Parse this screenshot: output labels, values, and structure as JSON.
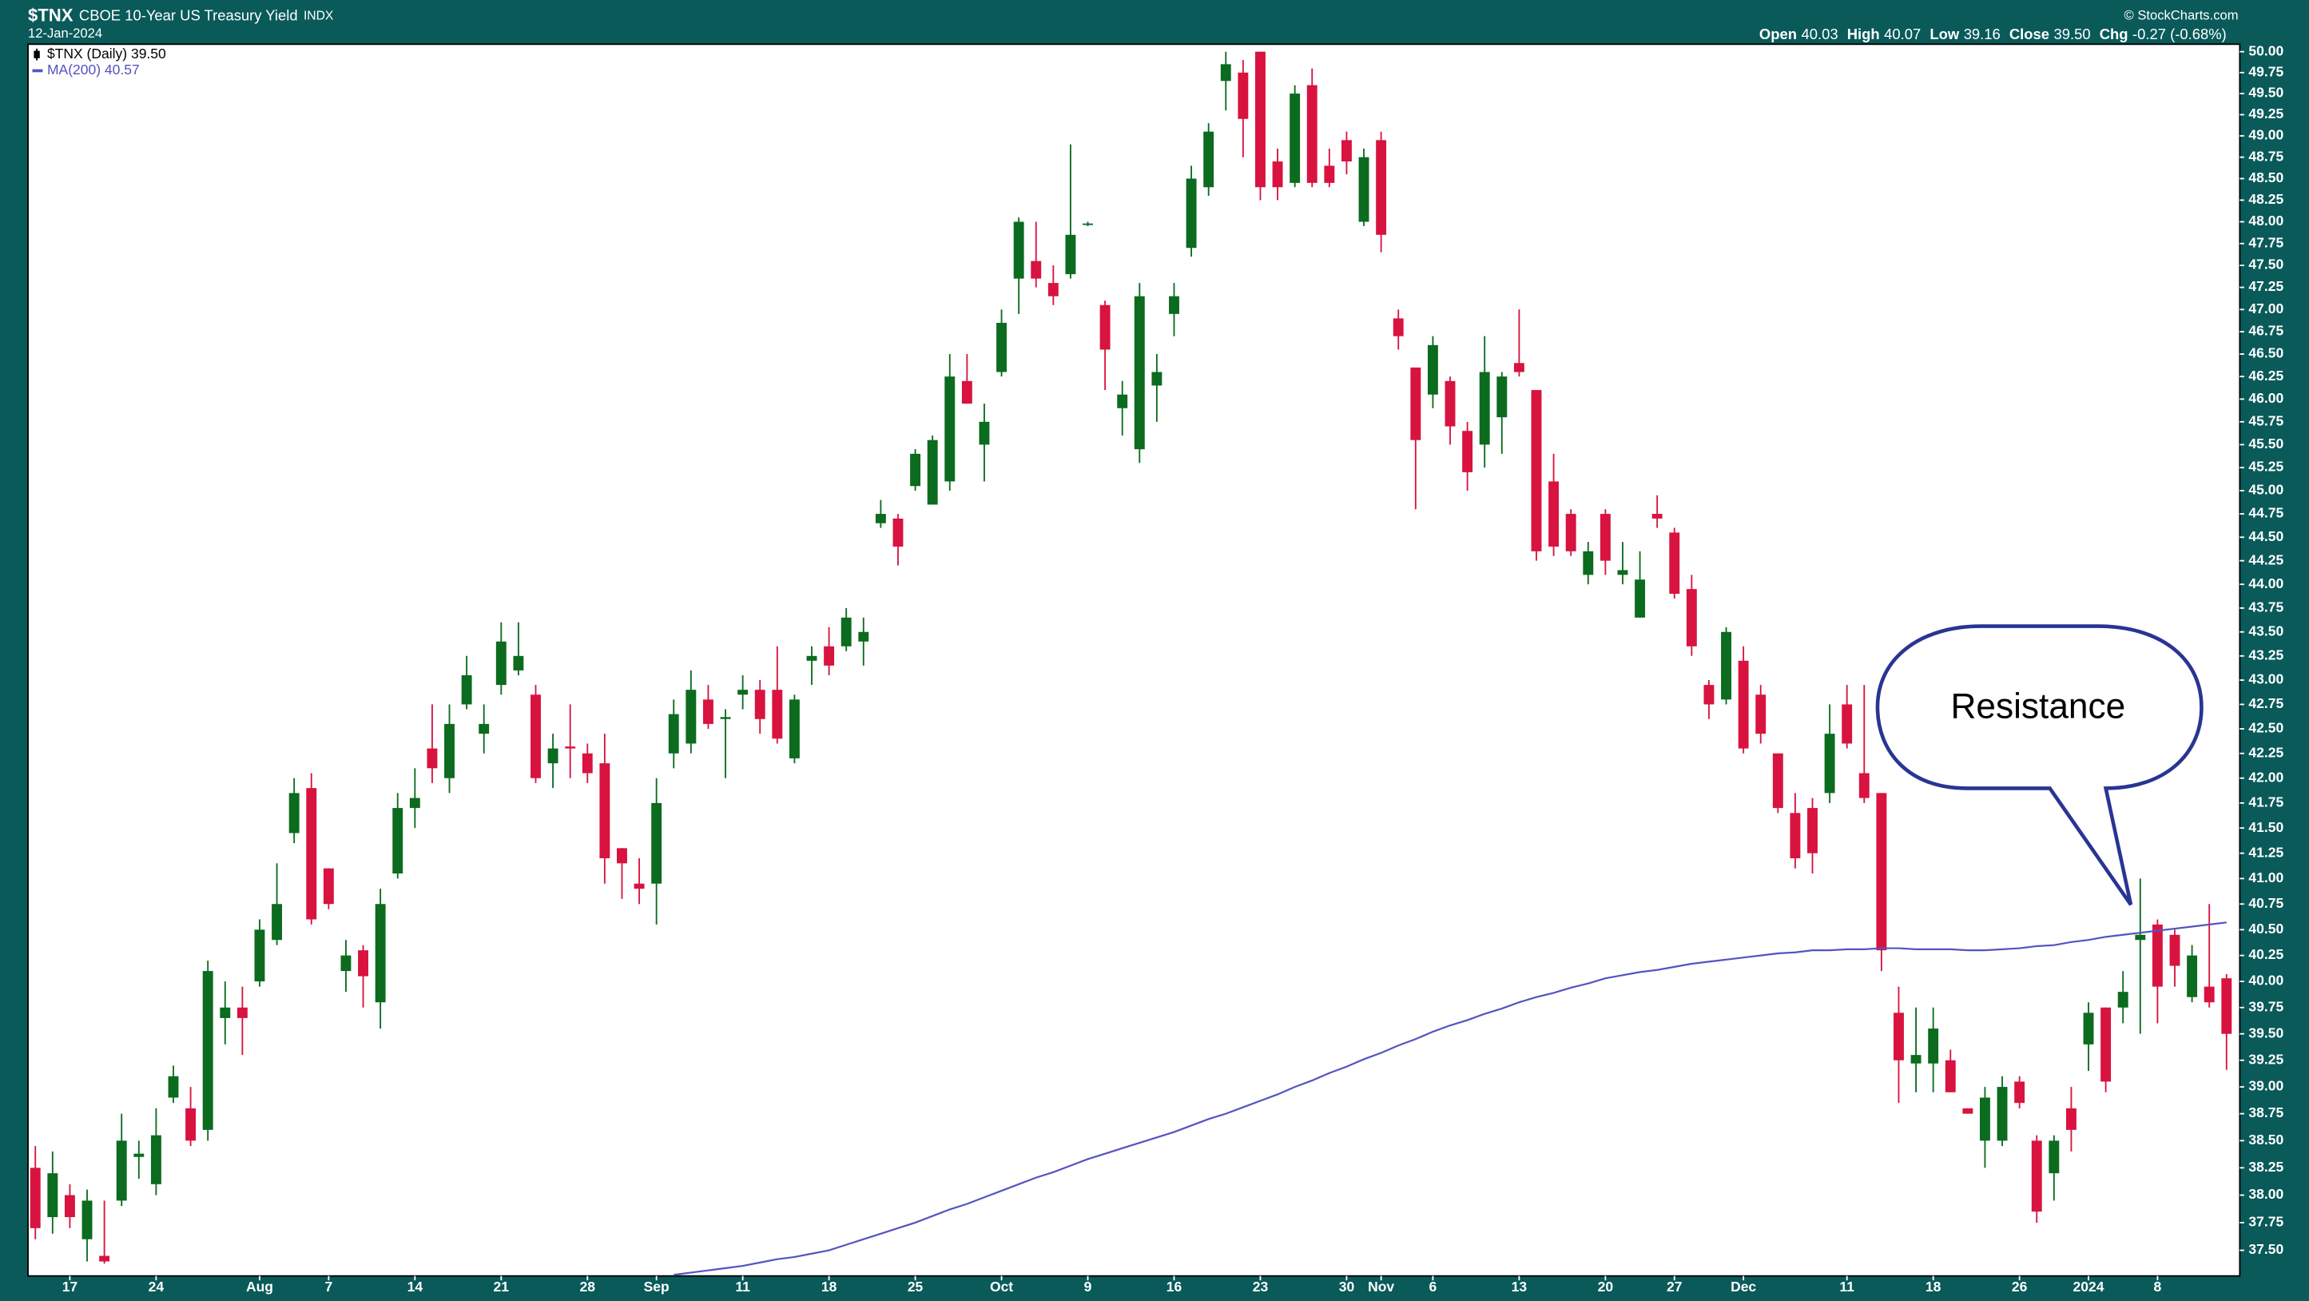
{
  "chart_data": {
    "type": "candlestick",
    "symbol": "$TNX",
    "title": "CBOE 10-Year US Treasury Yield",
    "exchange": "INDX",
    "date": "12-Jan-2024",
    "credit": "© StockCharts.com",
    "quote": [
      {
        "label": "Open",
        "value": "40.03"
      },
      {
        "label": "High",
        "value": "40.07"
      },
      {
        "label": "Low",
        "value": "39.16"
      },
      {
        "label": "Close",
        "value": "39.50"
      },
      {
        "label": "Chg",
        "value": "-0.27 (-0.68%)"
      }
    ],
    "annotation": "Resistance",
    "legend": "top-left",
    "log_scale": true,
    "grid": false,
    "ylim": [
      37.27,
      50.09
    ],
    "yticks": [
      {
        "value": 37.5,
        "label": "37.50"
      },
      37.75,
      {
        "value": 38,
        "label": "38.00"
      },
      38.25,
      {
        "value": 38.5,
        "label": "38.50"
      },
      38.75,
      {
        "value": 39,
        "label": "39.00"
      },
      39.25,
      {
        "value": 39.5,
        "label": "39.50"
      },
      39.75,
      {
        "value": 40,
        "label": "40.00"
      },
      40.25,
      {
        "value": 40.5,
        "label": "40.50"
      },
      40.75,
      {
        "value": 41,
        "label": "41.00"
      },
      41.25,
      {
        "value": 41.5,
        "label": "41.50"
      },
      41.75,
      {
        "value": 42,
        "label": "42.00"
      },
      42.25,
      {
        "value": 42.5,
        "label": "42.50"
      },
      42.75,
      {
        "value": 43,
        "label": "43.00"
      },
      43.25,
      {
        "value": 43.5,
        "label": "43.50"
      },
      43.75,
      {
        "value": 44,
        "label": "44.00"
      },
      44.25,
      {
        "value": 44.5,
        "label": "44.50"
      },
      44.75,
      {
        "value": 45,
        "label": "45.00"
      },
      45.25,
      {
        "value": 45.5,
        "label": "45.50"
      },
      45.75,
      {
        "value": 46,
        "label": "46.00"
      },
      46.25,
      {
        "value": 46.5,
        "label": "46.50"
      },
      46.75,
      {
        "value": 47,
        "label": "47.00"
      },
      47.25,
      {
        "value": 47.5,
        "label": "47.50"
      },
      47.75,
      {
        "value": 48,
        "label": "48.00"
      },
      48.25,
      {
        "value": 48.5,
        "label": "48.50"
      },
      48.75,
      {
        "value": 49,
        "label": "49.00"
      },
      49.25,
      {
        "value": 49.5,
        "label": "49.50"
      },
      49.75,
      {
        "value": 50,
        "label": "50.00"
      }
    ],
    "categories": [
      null,
      null,
      "17",
      null,
      null,
      null,
      null,
      "24",
      null,
      null,
      null,
      null,
      null,
      "Aug",
      null,
      null,
      null,
      "7",
      null,
      null,
      null,
      null,
      "14",
      null,
      null,
      null,
      null,
      "21",
      null,
      null,
      null,
      null,
      "28",
      null,
      null,
      null,
      "Sep",
      null,
      null,
      null,
      null,
      "11",
      null,
      null,
      null,
      null,
      "18",
      null,
      null,
      null,
      null,
      "25",
      null,
      null,
      null,
      null,
      "Oct",
      null,
      null,
      null,
      null,
      "9",
      null,
      null,
      null,
      null,
      "16",
      null,
      null,
      null,
      null,
      "23",
      null,
      null,
      null,
      null,
      "30",
      null,
      "Nov",
      null,
      null,
      "6",
      null,
      null,
      null,
      null,
      "13",
      null,
      null,
      null,
      null,
      "20",
      null,
      null,
      null,
      "27",
      null,
      null,
      null,
      "Dec",
      null,
      null,
      null,
      null,
      null,
      "11",
      null,
      null,
      null,
      null,
      "18",
      null,
      null,
      null,
      null,
      "26",
      null,
      null,
      null,
      "2024",
      null,
      null,
      null,
      "8",
      null,
      null,
      null,
      null
    ],
    "series": [
      {
        "name": "$TNX (Daily) 39.50",
        "up_color": "#0b6b1e",
        "down_color": "#d8133f",
        "open": [
          38.25,
          37.8,
          38.0,
          37.6,
          37.45,
          37.95,
          38.35,
          38.1,
          38.9,
          38.8,
          38.6,
          39.65,
          39.75,
          40.0,
          40.4,
          41.45,
          41.9,
          41.1,
          40.1,
          40.3,
          39.8,
          41.05,
          41.7,
          42.3,
          42.0,
          42.75,
          42.45,
          42.95,
          43.1,
          42.85,
          42.15,
          42.32,
          42.25,
          42.15,
          41.3,
          40.95,
          40.95,
          42.25,
          42.35,
          42.8,
          42.6,
          42.85,
          42.9,
          42.9,
          42.2,
          43.2,
          43.35,
          43.35,
          43.4,
          44.65,
          44.7,
          45.05,
          44.85,
          45.1,
          46.2,
          45.5,
          46.3,
          47.35,
          47.55,
          47.3,
          47.4,
          47.97,
          47.05,
          45.9,
          45.45,
          46.15,
          46.95,
          47.7,
          48.4,
          49.65,
          49.75,
          50.0,
          48.7,
          48.45,
          49.6,
          48.65,
          48.95,
          48.0,
          48.95,
          46.9,
          46.35,
          46.05,
          46.2,
          45.65,
          45.5,
          45.8,
          46.4,
          46.1,
          45.1,
          44.75,
          44.1,
          44.75,
          44.1,
          43.65,
          44.75,
          44.55,
          43.95,
          42.95,
          42.8,
          43.2,
          42.85,
          42.25,
          41.65,
          41.7,
          41.85,
          42.75,
          42.05,
          41.85,
          39.7,
          39.22,
          39.22,
          39.25,
          38.8,
          38.5,
          38.5,
          39.05,
          38.5,
          38.2,
          38.8,
          39.4,
          39.75,
          39.75,
          40.4,
          40.55,
          40.45,
          39.85,
          39.95,
          40.03
        ],
        "high": [
          38.45,
          38.4,
          38.1,
          38.05,
          37.95,
          38.75,
          38.5,
          38.8,
          39.2,
          39.0,
          40.2,
          40.0,
          39.95,
          40.6,
          41.15,
          42.0,
          42.05,
          41.1,
          40.4,
          40.35,
          40.9,
          41.85,
          42.1,
          42.75,
          42.75,
          43.25,
          42.75,
          43.6,
          43.6,
          42.95,
          42.45,
          42.75,
          42.35,
          42.45,
          41.3,
          41.2,
          42.0,
          42.8,
          43.1,
          42.95,
          42.7,
          43.05,
          43.0,
          43.35,
          42.85,
          43.35,
          43.55,
          43.75,
          43.65,
          44.9,
          44.75,
          45.45,
          45.6,
          46.5,
          46.5,
          45.95,
          47.0,
          48.05,
          48.0,
          47.5,
          48.9,
          48.0,
          47.1,
          46.2,
          47.3,
          46.5,
          47.3,
          48.65,
          49.15,
          50.0,
          49.9,
          50.0,
          48.85,
          49.6,
          49.8,
          48.85,
          49.05,
          48.85,
          49.05,
          47.0,
          46.35,
          46.7,
          46.25,
          45.75,
          46.7,
          46.3,
          47.0,
          46.1,
          45.4,
          44.8,
          44.45,
          44.8,
          44.45,
          44.35,
          44.95,
          44.6,
          44.1,
          43.0,
          43.55,
          43.35,
          42.95,
          42.25,
          41.85,
          41.8,
          42.75,
          42.95,
          42.95,
          41.85,
          39.95,
          39.75,
          39.75,
          39.35,
          38.8,
          39.0,
          39.1,
          39.1,
          38.55,
          38.55,
          39.0,
          39.8,
          39.75,
          40.1,
          41.0,
          40.6,
          40.5,
          40.35,
          40.75,
          40.07
        ],
        "low": [
          37.6,
          37.65,
          37.7,
          37.4,
          37.38,
          37.9,
          38.15,
          38.0,
          38.85,
          38.45,
          38.5,
          39.4,
          39.3,
          39.95,
          40.35,
          41.35,
          40.55,
          40.7,
          39.9,
          39.75,
          39.55,
          41.0,
          41.5,
          41.95,
          41.85,
          42.7,
          42.25,
          42.85,
          43.05,
          41.95,
          41.9,
          42.0,
          41.95,
          40.95,
          40.8,
          40.75,
          40.55,
          42.1,
          42.25,
          42.5,
          42.0,
          42.7,
          42.45,
          42.35,
          42.15,
          42.95,
          43.05,
          43.3,
          43.15,
          44.6,
          44.2,
          45.0,
          44.85,
          45.0,
          45.95,
          45.1,
          46.25,
          46.95,
          47.25,
          47.05,
          47.35,
          47.95,
          46.1,
          45.6,
          45.3,
          45.75,
          46.7,
          47.6,
          48.3,
          49.3,
          48.75,
          48.25,
          48.25,
          48.4,
          48.4,
          48.4,
          48.55,
          47.95,
          47.65,
          46.55,
          44.8,
          45.9,
          45.5,
          45.0,
          45.25,
          45.4,
          46.25,
          44.25,
          44.3,
          44.3,
          44.0,
          44.1,
          44.0,
          43.65,
          44.6,
          43.85,
          43.25,
          42.6,
          42.75,
          42.25,
          42.35,
          41.65,
          41.1,
          41.05,
          41.75,
          42.3,
          41.75,
          40.1,
          38.85,
          38.95,
          38.95,
          38.95,
          38.75,
          38.25,
          38.45,
          38.8,
          37.75,
          37.95,
          38.4,
          39.15,
          38.95,
          39.6,
          39.5,
          39.6,
          39.95,
          39.8,
          39.75,
          39.16
        ],
        "close": [
          37.7,
          38.2,
          37.8,
          37.95,
          37.4,
          38.5,
          38.38,
          38.55,
          39.1,
          38.5,
          40.1,
          39.75,
          39.65,
          40.5,
          40.75,
          41.85,
          40.6,
          40.75,
          40.25,
          40.05,
          40.75,
          41.7,
          41.8,
          42.1,
          42.55,
          43.05,
          42.55,
          43.4,
          43.25,
          42.0,
          42.3,
          42.3,
          42.05,
          41.2,
          41.15,
          40.9,
          41.75,
          42.65,
          42.9,
          42.55,
          42.62,
          42.9,
          42.6,
          42.4,
          42.8,
          43.25,
          43.15,
          43.65,
          43.5,
          44.75,
          44.4,
          45.4,
          45.55,
          46.25,
          45.95,
          45.75,
          46.85,
          48.0,
          47.35,
          47.15,
          47.85,
          47.98,
          46.55,
          46.05,
          47.15,
          46.3,
          47.15,
          48.5,
          49.05,
          49.85,
          49.2,
          48.4,
          48.4,
          49.5,
          48.45,
          48.45,
          48.7,
          48.75,
          47.85,
          46.7,
          45.55,
          46.6,
          45.7,
          45.2,
          46.3,
          46.25,
          46.3,
          44.35,
          44.4,
          44.35,
          44.35,
          44.25,
          44.15,
          44.05,
          44.7,
          43.9,
          43.35,
          42.75,
          43.5,
          42.3,
          42.45,
          41.7,
          41.2,
          41.25,
          42.45,
          42.35,
          41.8,
          40.3,
          39.25,
          39.3,
          39.55,
          38.95,
          38.75,
          38.9,
          39.0,
          38.85,
          37.85,
          38.5,
          38.6,
          39.7,
          39.05,
          39.9,
          40.45,
          39.95,
          40.15,
          40.25,
          39.8,
          39.5
        ]
      },
      {
        "name": "MA(200) 40.57",
        "color": "#5453c2",
        "values": [
          null,
          null,
          null,
          null,
          null,
          null,
          null,
          null,
          null,
          null,
          null,
          null,
          null,
          null,
          null,
          null,
          null,
          null,
          null,
          null,
          null,
          null,
          null,
          null,
          null,
          null,
          null,
          null,
          null,
          null,
          null,
          null,
          null,
          null,
          null,
          null,
          null,
          37.28,
          37.3,
          37.32,
          37.34,
          37.36,
          37.39,
          37.42,
          37.44,
          37.47,
          37.5,
          37.55,
          37.6,
          37.65,
          37.7,
          37.75,
          37.81,
          37.87,
          37.92,
          37.98,
          38.04,
          38.1,
          38.16,
          38.21,
          38.27,
          38.33,
          38.38,
          38.43,
          38.48,
          38.53,
          38.58,
          38.64,
          38.7,
          38.75,
          38.81,
          38.87,
          38.93,
          39.0,
          39.06,
          39.13,
          39.19,
          39.26,
          39.32,
          39.39,
          39.45,
          39.52,
          39.58,
          39.63,
          39.69,
          39.74,
          39.8,
          39.85,
          39.89,
          39.94,
          39.98,
          40.03,
          40.06,
          40.09,
          40.11,
          40.14,
          40.17,
          40.19,
          40.21,
          40.23,
          40.25,
          40.27,
          40.28,
          40.3,
          40.3,
          40.31,
          40.31,
          40.32,
          40.32,
          40.31,
          40.31,
          40.31,
          40.3,
          40.3,
          40.31,
          40.32,
          40.34,
          40.35,
          40.38,
          40.4,
          40.43,
          40.45,
          40.47,
          40.49,
          40.51,
          40.53,
          40.55,
          40.57
        ]
      }
    ]
  }
}
